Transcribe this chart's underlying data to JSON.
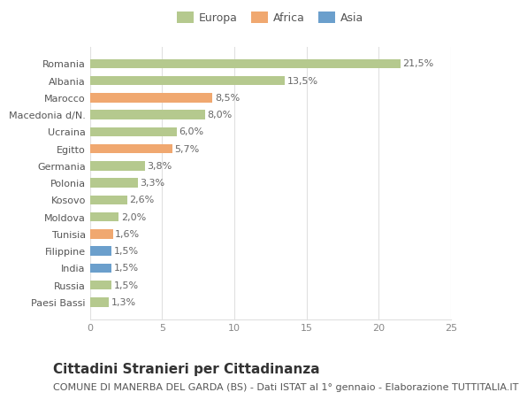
{
  "categories": [
    "Paesi Bassi",
    "Russia",
    "India",
    "Filippine",
    "Tunisia",
    "Moldova",
    "Kosovo",
    "Polonia",
    "Germania",
    "Egitto",
    "Ucraina",
    "Macedonia d/N.",
    "Marocco",
    "Albania",
    "Romania"
  ],
  "values": [
    1.3,
    1.5,
    1.5,
    1.5,
    1.6,
    2.0,
    2.6,
    3.3,
    3.8,
    5.7,
    6.0,
    8.0,
    8.5,
    13.5,
    21.5
  ],
  "labels": [
    "1,3%",
    "1,5%",
    "1,5%",
    "1,5%",
    "1,6%",
    "2,0%",
    "2,6%",
    "3,3%",
    "3,8%",
    "5,7%",
    "6,0%",
    "8,0%",
    "8,5%",
    "13,5%",
    "21,5%"
  ],
  "colors": [
    "#b5c98e",
    "#b5c98e",
    "#6b9fcc",
    "#6b9fcc",
    "#f0a870",
    "#b5c98e",
    "#b5c98e",
    "#b5c98e",
    "#b5c98e",
    "#f0a870",
    "#b5c98e",
    "#b5c98e",
    "#f0a870",
    "#b5c98e",
    "#b5c98e"
  ],
  "legend_labels": [
    "Europa",
    "Africa",
    "Asia"
  ],
  "legend_colors": [
    "#b5c98e",
    "#f0a870",
    "#6b9fcc"
  ],
  "title": "Cittadini Stranieri per Cittadinanza",
  "subtitle": "COMUNE DI MANERBA DEL GARDA (BS) - Dati ISTAT al 1° gennaio - Elaborazione TUTTITALIA.IT",
  "xlim": [
    0,
    25
  ],
  "xticks": [
    0,
    5,
    10,
    15,
    20,
    25
  ],
  "background_color": "#ffffff",
  "grid_color": "#e0e0e0",
  "bar_height": 0.55,
  "title_fontsize": 11,
  "subtitle_fontsize": 8,
  "label_fontsize": 8,
  "tick_fontsize": 8,
  "legend_fontsize": 9
}
